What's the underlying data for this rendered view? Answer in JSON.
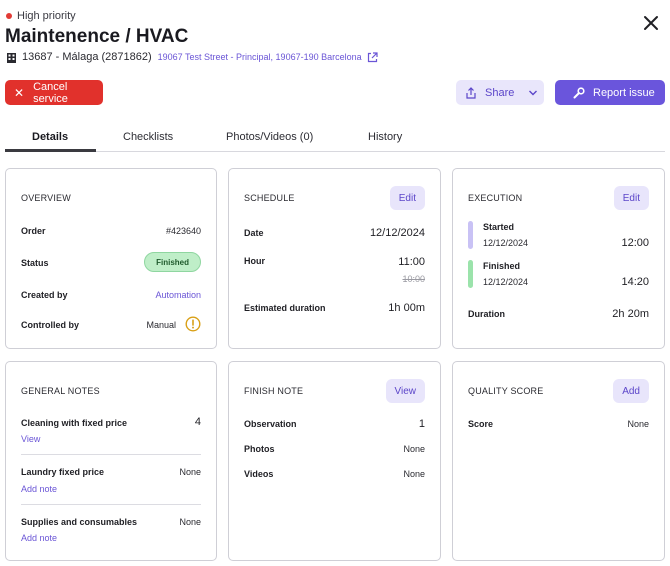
{
  "header": {
    "priority": "High priority",
    "title": "Maintenence / HVAC",
    "property": "13687 - Málaga (2871862)",
    "address": "19067 Test Street - Principal, 19067-190 Barcelona"
  },
  "actions": {
    "cancel": "Cancel service",
    "share": "Share",
    "report": "Report issue"
  },
  "tabs": [
    "Details",
    "Checklists",
    "Photos/Videos (0)",
    "History"
  ],
  "overview": {
    "title": "OVERVIEW",
    "order_label": "Order",
    "order_value": "#423640",
    "status_label": "Status",
    "status_value": "Finished",
    "created_label": "Created by",
    "created_value": "Automation",
    "controlled_label": "Controlled by",
    "controlled_value": "Manual"
  },
  "schedule": {
    "title": "SCHEDULE",
    "edit": "Edit",
    "date_label": "Date",
    "date_value": "12/12/2024",
    "hour_label": "Hour",
    "hour_value": "11:00",
    "hour_old": "10:00",
    "duration_label": "Estimated duration",
    "duration_value": "1h 00m"
  },
  "execution": {
    "title": "EXECUTION",
    "edit": "Edit",
    "started_label": "Started",
    "started_date": "12/12/2024",
    "started_time": "12:00",
    "finished_label": "Finished",
    "finished_date": "12/12/2024",
    "finished_time": "14:20",
    "duration_label": "Duration",
    "duration_value": "2h 20m",
    "started_color": "#c9c2f5",
    "finished_color": "#9be3ab"
  },
  "general_notes": {
    "title": "GENERAL NOTES",
    "items": [
      {
        "label": "Cleaning with fixed price",
        "value": "4",
        "link": "View"
      },
      {
        "label": "Laundry fixed price",
        "value": "None",
        "link": "Add note"
      },
      {
        "label": "Supplies and consumables",
        "value": "None",
        "link": "Add note"
      }
    ]
  },
  "finish_note": {
    "title": "FINISH NOTE",
    "view": "View",
    "observation_label": "Observation",
    "observation_value": "1",
    "photos_label": "Photos",
    "photos_value": "None",
    "videos_label": "Videos",
    "videos_value": "None"
  },
  "quality": {
    "title": "QUALITY SCORE",
    "add": "Add",
    "score_label": "Score",
    "score_value": "None"
  },
  "colors": {
    "accent": "#6a55dc",
    "danger": "#e1312c",
    "warning": "#d9a017"
  },
  "icons": [
    "building-icon",
    "external-link-icon",
    "close-icon",
    "share-icon",
    "chevron-down-icon",
    "wrench-icon",
    "warning-icon"
  ]
}
